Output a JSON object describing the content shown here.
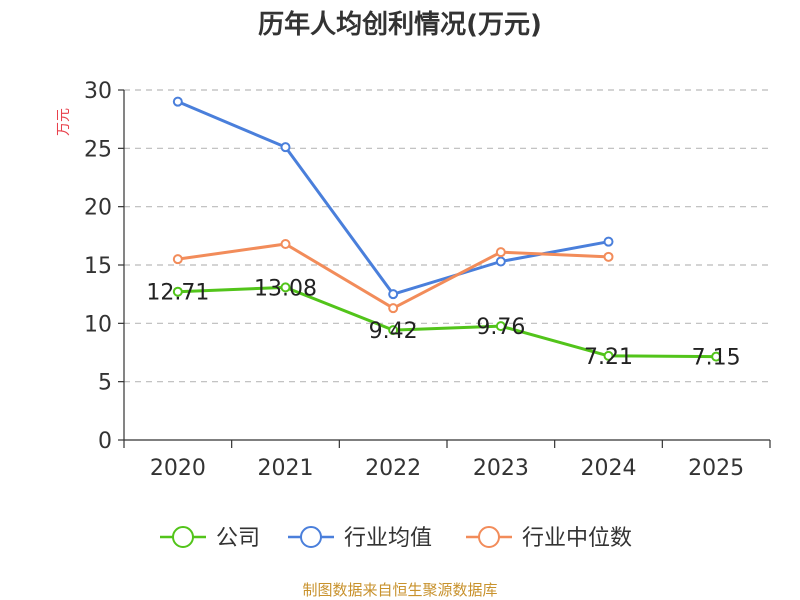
{
  "chart_data": {
    "type": "line",
    "title": "历年人均创利情况(万元)",
    "ylabel": "万元",
    "xlabel": "",
    "categories": [
      "2020",
      "2021",
      "2022",
      "2023",
      "2024",
      "2025"
    ],
    "ylim": [
      0,
      30
    ],
    "yticks": [
      0,
      5,
      10,
      15,
      20,
      25,
      30
    ],
    "grid": true,
    "legend_position": "bottom",
    "series": [
      {
        "name": "公司",
        "color": "#52c41a",
        "values": [
          12.71,
          13.08,
          9.42,
          9.76,
          7.21,
          7.15
        ],
        "labels": [
          "12.71",
          "13.08",
          "9.42",
          "9.76",
          "7.21",
          "7.15"
        ]
      },
      {
        "name": "行业均值",
        "color": "#4a7fdb",
        "values": [
          29.0,
          25.1,
          12.5,
          15.3,
          17.0,
          null
        ]
      },
      {
        "name": "行业中位数",
        "color": "#f28c5a",
        "values": [
          15.5,
          16.8,
          11.3,
          16.1,
          15.7,
          null
        ]
      }
    ]
  },
  "footer": {
    "source": "制图数据来自恒生聚源数据库"
  }
}
